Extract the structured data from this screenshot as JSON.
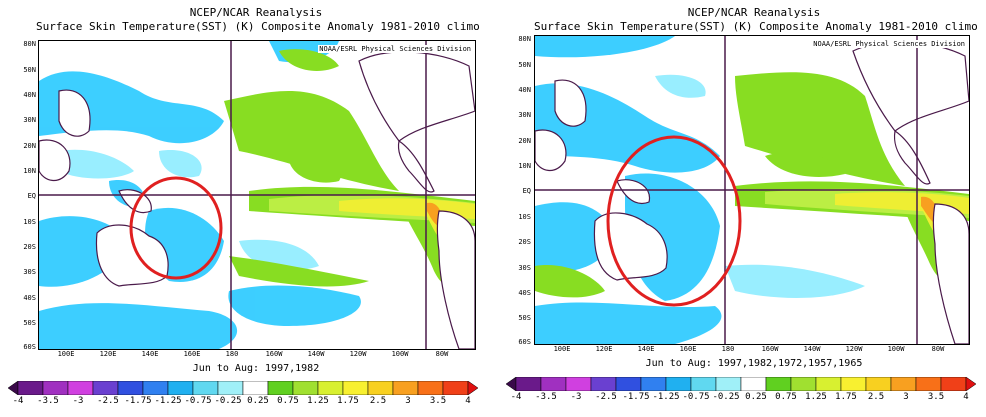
{
  "panels": [
    {
      "title_line1": "NCEP/NCAR Reanalysis",
      "title_line2": "Surface Skin Temperature(SST) (K) Composite Anomaly 1981-2010 climo",
      "credit": "NOAA/ESRL Physical Sciences Division",
      "period": "Jun to Aug: 1997,1982",
      "lat_labels": [
        "80N",
        "50N",
        "40N",
        "30N",
        "20N",
        "10N",
        "EQ",
        "10S",
        "20S",
        "30S",
        "40S",
        "50S",
        "60S"
      ],
      "lon_labels": [
        "100E",
        "120E",
        "140E",
        "160E",
        "180",
        "160W",
        "140W",
        "120W",
        "100W",
        "80W"
      ]
    },
    {
      "title_line1": "NCEP/NCAR Reanalysis",
      "title_line2": "Surface Skin Temperature(SST) (K) Composite Anomaly 1981-2010 climo",
      "credit": "NOAA/ESRL Physical Sciences Division",
      "period": "Jun to Aug: 1997,1982,1972,1957,1965",
      "lat_labels": [
        "80N",
        "50N",
        "40N",
        "30N",
        "20N",
        "10N",
        "EQ",
        "10S",
        "20S",
        "30S",
        "40S",
        "50S",
        "60S"
      ],
      "lon_labels": [
        "100E",
        "120E",
        "140E",
        "160E",
        "180",
        "160W",
        "140W",
        "120W",
        "100W",
        "80W"
      ]
    }
  ],
  "colorbar": {
    "labels": [
      "-4",
      "-3.5",
      "-3",
      "-2.5",
      "-1.75",
      "-1.25",
      "-0.75",
      "-0.25",
      "0.25",
      "0.75",
      "1.25",
      "1.75",
      "2.5",
      "3",
      "3.5",
      "4"
    ],
    "colors": [
      "#3a0a4a",
      "#6a1a8a",
      "#a030c0",
      "#d040e0",
      "#6a40d0",
      "#3050e0",
      "#3080f0",
      "#20b0f0",
      "#60d8f0",
      "#a0f0f8",
      "#ffffff",
      "#60d020",
      "#a0e030",
      "#d8f030",
      "#f8f030",
      "#f8d020",
      "#f8a020",
      "#f87018",
      "#f04018",
      "#e01010"
    ]
  },
  "colors": {
    "cyan": "#33ccff",
    "light_cyan": "#99eeff",
    "green": "#88dd22",
    "light_green": "#bbee44",
    "yellow": "#eeee33",
    "orange": "#f8a020",
    "land_line": "#4a1a4a",
    "highlight_circle": "#e02020"
  }
}
